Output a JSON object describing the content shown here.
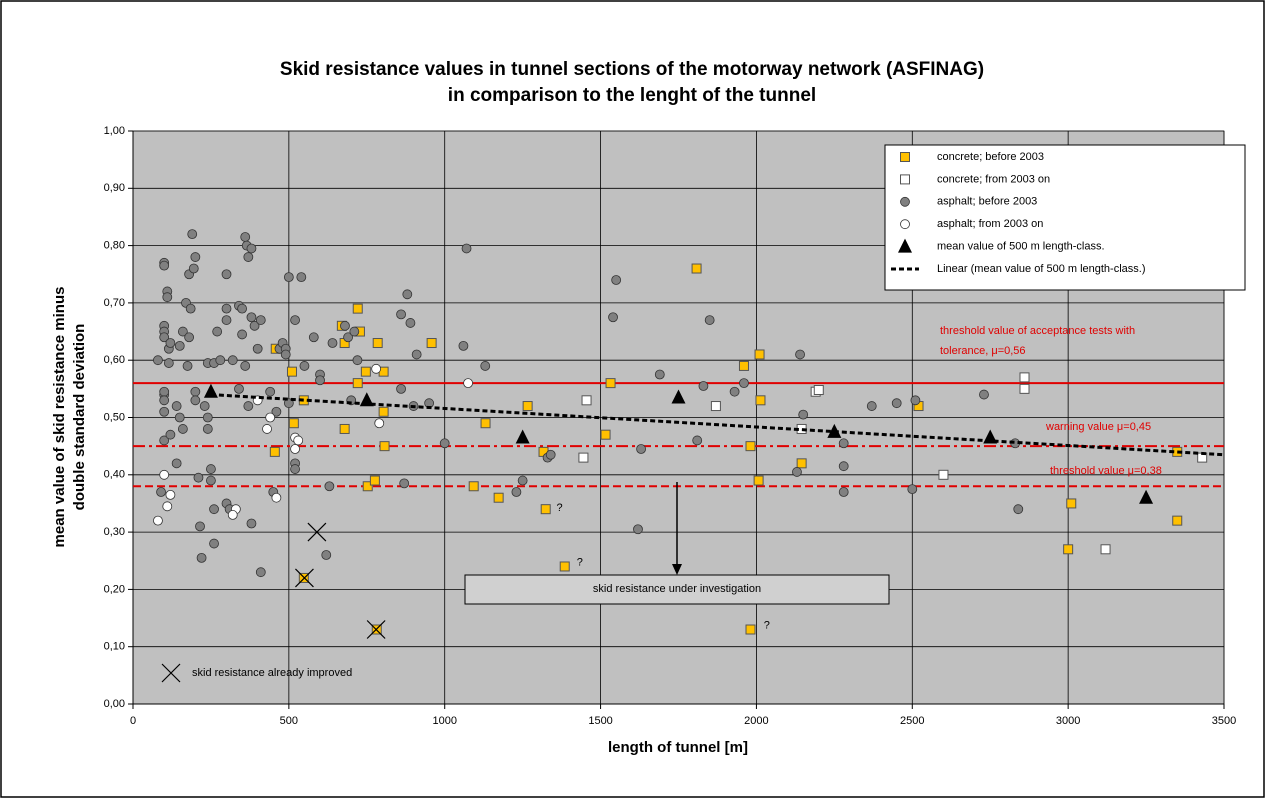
{
  "chart_data": {
    "type": "scatter",
    "title": [
      "Skid resistance values in tunnel sections of the motorway network (ASFINAG)",
      "in comparison to the lenght of the tunnel"
    ],
    "xlabel": "length of tunnel [m]",
    "ylabel": [
      "mean value of skid resistance minus",
      "double standard deviation"
    ],
    "xlim": [
      0,
      3500
    ],
    "ylim": [
      0,
      1
    ],
    "xticks": [
      0,
      500,
      1000,
      1500,
      2000,
      2500,
      3000,
      3500
    ],
    "yticks": [
      {
        "value": 0,
        "label": "0,00"
      },
      {
        "value": 0.1,
        "label": "0,10"
      },
      {
        "value": 0.2,
        "label": "0,20"
      },
      {
        "value": 0.3,
        "label": "0,30"
      },
      {
        "value": 0.4,
        "label": "0,40"
      },
      {
        "value": 0.5,
        "label": "0,50"
      },
      {
        "value": 0.6,
        "label": "0,60"
      },
      {
        "value": 0.7,
        "label": "0,70"
      },
      {
        "value": 0.8,
        "label": "0,80"
      },
      {
        "value": 0.9,
        "label": "0,90"
      },
      {
        "value": 1,
        "label": "1,00"
      }
    ],
    "grid": true,
    "legend": "upper right",
    "series": [
      {
        "name": "concrete; before 2003",
        "marker": "square",
        "color": "#ffc000",
        "x": [
          721,
          728,
          721,
          753,
          785,
          747,
          458,
          455,
          510,
          548,
          516,
          548,
          782,
          670,
          679,
          679,
          776,
          804,
          804,
          807,
          958,
          1131,
          1093,
          1173,
          1266,
          1317,
          1324,
          1385,
          1532,
          1516,
          1808,
          2010,
          1960,
          2013,
          1981,
          2007,
          1981,
          2145,
          2520,
          3000,
          3010,
          3350,
          3350
        ],
        "values": [
          0.69,
          0.65,
          0.56,
          0.38,
          0.63,
          0.58,
          0.62,
          0.44,
          0.58,
          0.53,
          0.49,
          0.22,
          0.13,
          0.66,
          0.63,
          0.48,
          0.39,
          0.51,
          0.58,
          0.45,
          0.63,
          0.49,
          0.38,
          0.36,
          0.52,
          0.44,
          0.34,
          0.24,
          0.56,
          0.47,
          0.76,
          0.61,
          0.59,
          0.53,
          0.45,
          0.39,
          0.13,
          0.42,
          0.52,
          0.27,
          0.35,
          0.44,
          0.32
        ]
      },
      {
        "name": "concrete; from 2003 on",
        "marker": "square",
        "color": "#ffffff",
        "x": [
          1455,
          1445,
          1870,
          2145,
          2190,
          2200,
          2600,
          2860,
          2860,
          3120,
          3430
        ],
        "values": [
          0.53,
          0.43,
          0.52,
          0.48,
          0.545,
          0.548,
          0.4,
          0.57,
          0.55,
          0.27,
          0.43
        ]
      },
      {
        "name": "asphalt; before 2003",
        "marker": "circle",
        "color": "#808080",
        "x": [
          80,
          90,
          100,
          100,
          100,
          100,
          100,
          100,
          100,
          100,
          100,
          100,
          110,
          110,
          115,
          115,
          120,
          120,
          140,
          140,
          150,
          150,
          160,
          160,
          170,
          175,
          180,
          180,
          185,
          190,
          195,
          200,
          200,
          200,
          210,
          215,
          220,
          230,
          240,
          240,
          240,
          250,
          250,
          260,
          260,
          260,
          270,
          280,
          300,
          300,
          300,
          300,
          310,
          320,
          340,
          340,
          350,
          350,
          360,
          360,
          365,
          370,
          370,
          380,
          380,
          380,
          390,
          400,
          410,
          410,
          440,
          450,
          460,
          470,
          480,
          490,
          490,
          500,
          500,
          520,
          520,
          520,
          540,
          550,
          580,
          600,
          600,
          620,
          630,
          640,
          680,
          690,
          700,
          710,
          720,
          860,
          860,
          870,
          880,
          890,
          900,
          910,
          950,
          1000,
          1060,
          1070,
          1130,
          1230,
          1250,
          1330,
          1340,
          1540,
          1550,
          1620,
          1630,
          1690,
          1810,
          1830,
          1850,
          1930,
          1960,
          2130,
          2140,
          2150,
          2280,
          2280,
          2280,
          2370,
          2450,
          2500,
          2510,
          2730,
          2830,
          2840
        ],
        "values": [
          0.6,
          0.37,
          0.77,
          0.765,
          0.66,
          0.65,
          0.64,
          0.54,
          0.545,
          0.53,
          0.51,
          0.46,
          0.72,
          0.71,
          0.595,
          0.62,
          0.63,
          0.47,
          0.52,
          0.42,
          0.625,
          0.5,
          0.65,
          0.48,
          0.7,
          0.59,
          0.75,
          0.64,
          0.69,
          0.82,
          0.76,
          0.78,
          0.545,
          0.53,
          0.395,
          0.31,
          0.255,
          0.52,
          0.595,
          0.5,
          0.48,
          0.41,
          0.39,
          0.34,
          0.28,
          0.595,
          0.65,
          0.6,
          0.75,
          0.69,
          0.67,
          0.35,
          0.34,
          0.6,
          0.55,
          0.695,
          0.645,
          0.69,
          0.815,
          0.59,
          0.8,
          0.78,
          0.52,
          0.795,
          0.675,
          0.315,
          0.66,
          0.62,
          0.67,
          0.23,
          0.545,
          0.37,
          0.51,
          0.62,
          0.63,
          0.62,
          0.61,
          0.525,
          0.745,
          0.67,
          0.42,
          0.41,
          0.745,
          0.59,
          0.64,
          0.575,
          0.565,
          0.26,
          0.38,
          0.63,
          0.66,
          0.64,
          0.53,
          0.65,
          0.6,
          0.68,
          0.55,
          0.385,
          0.715,
          0.665,
          0.52,
          0.61,
          0.525,
          0.455,
          0.625,
          0.795,
          0.59,
          0.37,
          0.39,
          0.43,
          0.435,
          0.675,
          0.74,
          0.305,
          0.445,
          0.575,
          0.46,
          0.555,
          0.67,
          0.545,
          0.56,
          0.405,
          0.61,
          0.505,
          0.37,
          0.415,
          0.455,
          0.52,
          0.525,
          0.375,
          0.53,
          0.54,
          0.455,
          0.34
        ]
      },
      {
        "name": "asphalt; from 2003 on",
        "marker": "circle",
        "color": "#ffffff",
        "x": [
          80,
          110,
          120,
          100,
          400,
          430,
          440,
          460,
          520,
          520,
          530,
          330,
          320,
          780,
          790,
          1075
        ],
        "values": [
          0.32,
          0.345,
          0.365,
          0.4,
          0.53,
          0.48,
          0.5,
          0.36,
          0.465,
          0.445,
          0.46,
          0.34,
          0.33,
          0.585,
          0.49,
          0.56
        ]
      },
      {
        "name": "mean value of 500 m length-class.",
        "marker": "triangle",
        "color": "#000000",
        "x": [
          250,
          750,
          1250,
          1750,
          2250,
          2750,
          3250
        ],
        "values": [
          0.545,
          0.53,
          0.465,
          0.535,
          0.475,
          0.465,
          0.36
        ]
      },
      {
        "name": "Linear (mean value of 500 m length-class.)",
        "marker": "dashed-line",
        "color": "#000000",
        "x": [
          250,
          3500
        ],
        "values": [
          0.54,
          0.435
        ]
      }
    ],
    "improved": {
      "name": "skid resistance already improved",
      "x": [
        590,
        550,
        780
      ],
      "values": [
        0.3,
        0.22,
        0.13
      ]
    },
    "reference_lines": [
      {
        "value": 0.56,
        "style": "solid",
        "label": [
          "threshold value of acceptance tests with",
          "tolerance, μ=0,56"
        ]
      },
      {
        "value": 0.45,
        "style": "dash-dot",
        "label": [
          "warning value μ=0,45"
        ]
      },
      {
        "value": 0.38,
        "style": "dashed",
        "label": [
          "threshold value μ=0,38"
        ]
      }
    ],
    "question_marks": [
      {
        "x": 1320,
        "y": 0.335,
        "text": "?"
      },
      {
        "x": 1385,
        "y": 0.24,
        "text": "?"
      },
      {
        "x": 1985,
        "y": 0.13,
        "text": "?"
      }
    ],
    "investigation": "skid resistance under investigation"
  }
}
